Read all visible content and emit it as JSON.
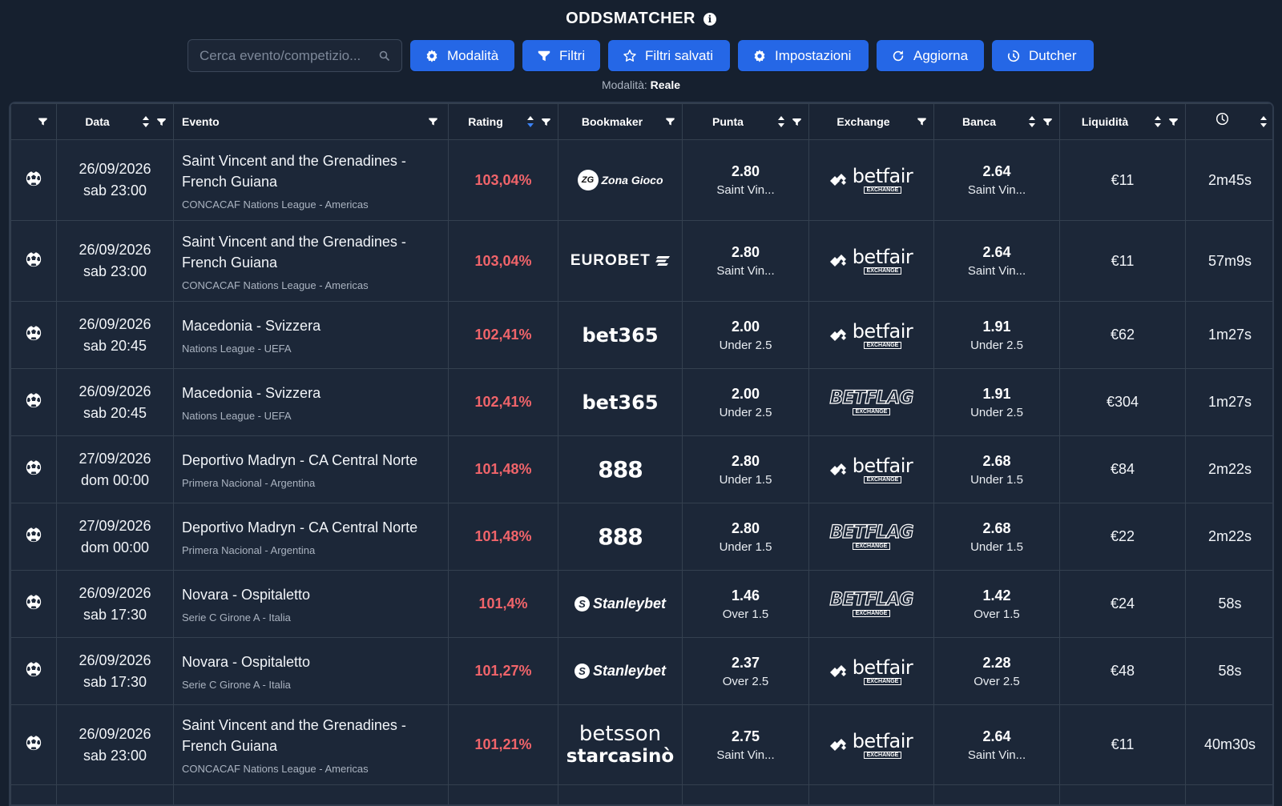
{
  "header": {
    "title": "ODDSMATCHER",
    "search_placeholder": "Cerca evento/competizio...",
    "buttons": {
      "mode": "Modalità",
      "filters": "Filtri",
      "saved_filters": "Filtri salvati",
      "settings": "Impostazioni",
      "refresh": "Aggiorna",
      "dutcher": "Dutcher"
    },
    "mode_label": "Modalità:",
    "mode_value": "Reale"
  },
  "table": {
    "columns": {
      "date": "Data",
      "event": "Evento",
      "rating": "Rating",
      "bookmaker": "Bookmaker",
      "back": "Punta",
      "exchange": "Exchange",
      "lay": "Banca",
      "liquidity": "Liquidità"
    },
    "rows": [
      {
        "date": "26/09/2026",
        "time": "sab 23:00",
        "event": "Saint Vincent and the Grenadines - French Guiana",
        "competition": "CONCACAF Nations League - Americas",
        "rating": "103,04%",
        "bookmaker": "Zona Gioco",
        "back_odd": "2.80",
        "back_sel": "Saint Vin...",
        "exchange": "betfair",
        "lay_odd": "2.64",
        "lay_sel": "Saint Vin...",
        "liquidity": "€11",
        "updated": "2m45s"
      },
      {
        "date": "26/09/2026",
        "time": "sab 23:00",
        "event": "Saint Vincent and the Grenadines - French Guiana",
        "competition": "CONCACAF Nations League - Americas",
        "rating": "103,04%",
        "bookmaker": "EUROBET",
        "back_odd": "2.80",
        "back_sel": "Saint Vin...",
        "exchange": "betfair",
        "lay_odd": "2.64",
        "lay_sel": "Saint Vin...",
        "liquidity": "€11",
        "updated": "57m9s"
      },
      {
        "date": "26/09/2026",
        "time": "sab 20:45",
        "event": "Macedonia - Svizzera",
        "competition": "Nations League - UEFA",
        "rating": "102,41%",
        "bookmaker": "bet365",
        "back_odd": "2.00",
        "back_sel": "Under 2.5",
        "exchange": "betfair",
        "lay_odd": "1.91",
        "lay_sel": "Under 2.5",
        "liquidity": "€62",
        "updated": "1m27s"
      },
      {
        "date": "26/09/2026",
        "time": "sab 20:45",
        "event": "Macedonia - Svizzera",
        "competition": "Nations League - UEFA",
        "rating": "102,41%",
        "bookmaker": "bet365",
        "back_odd": "2.00",
        "back_sel": "Under 2.5",
        "exchange": "BETFLAG",
        "lay_odd": "1.91",
        "lay_sel": "Under 2.5",
        "liquidity": "€304",
        "updated": "1m27s"
      },
      {
        "date": "27/09/2026",
        "time": "dom 00:00",
        "event": "Deportivo Madryn - CA Central Norte",
        "competition": "Primera Nacional - Argentina",
        "rating": "101,48%",
        "bookmaker": "888",
        "back_odd": "2.80",
        "back_sel": "Under 1.5",
        "exchange": "betfair",
        "lay_odd": "2.68",
        "lay_sel": "Under 1.5",
        "liquidity": "€84",
        "updated": "2m22s"
      },
      {
        "date": "27/09/2026",
        "time": "dom 00:00",
        "event": "Deportivo Madryn - CA Central Norte",
        "competition": "Primera Nacional - Argentina",
        "rating": "101,48%",
        "bookmaker": "888",
        "back_odd": "2.80",
        "back_sel": "Under 1.5",
        "exchange": "BETFLAG",
        "lay_odd": "2.68",
        "lay_sel": "Under 1.5",
        "liquidity": "€22",
        "updated": "2m22s"
      },
      {
        "date": "26/09/2026",
        "time": "sab 17:30",
        "event": "Novara - Ospitaletto",
        "competition": "Serie C Girone A - Italia",
        "rating": "101,4%",
        "bookmaker": "Stanleybet",
        "back_odd": "1.46",
        "back_sel": "Over 1.5",
        "exchange": "BETFLAG",
        "lay_odd": "1.42",
        "lay_sel": "Over 1.5",
        "liquidity": "€24",
        "updated": "58s"
      },
      {
        "date": "26/09/2026",
        "time": "sab 17:30",
        "event": "Novara - Ospitaletto",
        "competition": "Serie C Girone A - Italia",
        "rating": "101,27%",
        "bookmaker": "Stanleybet",
        "back_odd": "2.37",
        "back_sel": "Over 2.5",
        "exchange": "betfair",
        "lay_odd": "2.28",
        "lay_sel": "Over 2.5",
        "liquidity": "€48",
        "updated": "58s"
      },
      {
        "date": "26/09/2026",
        "time": "sab 23:00",
        "event": "Saint Vincent and the Grenadines - French Guiana",
        "competition": "CONCACAF Nations League - Americas",
        "rating": "101,21%",
        "bookmaker": "betsson starcasinò",
        "back_odd": "2.75",
        "back_sel": "Saint Vin...",
        "exchange": "betfair",
        "lay_odd": "2.64",
        "lay_sel": "Saint Vin...",
        "liquidity": "€11",
        "updated": "40m30s"
      }
    ]
  },
  "logos": {
    "zonagioco_mark": "ZG",
    "zonagioco_text": "Zona Gioco",
    "eurobet": "EUROBET",
    "bet365": "bet365",
    "b888": "888",
    "stanleybet": "Stanleybet",
    "betsson": "betsson",
    "starcasino": "starcasinò",
    "betfair": "betfair",
    "betflag": "BETFLAG",
    "exchange_sub": "EXCHANGE"
  },
  "colors": {
    "background": "#16202f",
    "button": "#2567e6",
    "rating": "#f0646a",
    "sort_active": "#3b82f6"
  }
}
